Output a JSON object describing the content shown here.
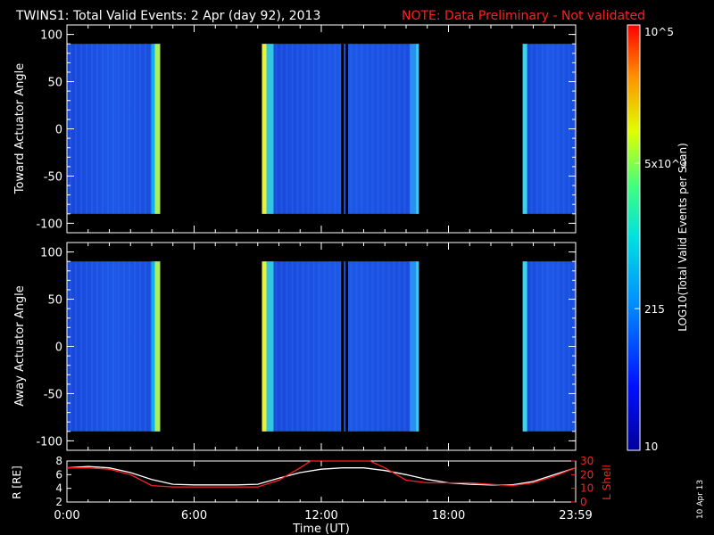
{
  "header": {
    "title": "TWINS1: Total Valid Events:  2 Apr (day  92), 2013",
    "note": "NOTE: Data Preliminary - Not validated"
  },
  "colors": {
    "background": "#000000",
    "foreground": "#ffffff",
    "note": "#ff2020",
    "r_line": "#ffffff",
    "lshell_line": "#ff2020"
  },
  "chart_data": [
    {
      "type": "heatmap",
      "title": "",
      "ylabel": "Toward Actuator Angle",
      "ylim": [
        -110,
        110
      ],
      "yticks": [
        "100",
        "50",
        "0",
        "-50",
        "-100"
      ],
      "ytick_values": [
        100,
        50,
        0,
        -50,
        -100
      ],
      "xlim_hours": [
        0,
        24
      ],
      "data_angle_range": [
        -90,
        90
      ],
      "segments_hours": [
        [
          0.0,
          4.4
        ],
        [
          9.2,
          16.6
        ],
        [
          21.5,
          24.0
        ]
      ],
      "data_gaps_hours": [
        13.0,
        13.2
      ],
      "colorbar": {
        "scale": "log",
        "label": "LOG10(Total Valid Events per Scan)",
        "ticks": [
          "10",
          "215",
          "5x10^3",
          "10^5"
        ],
        "tick_values": [
          10,
          215,
          5000,
          100000
        ]
      }
    },
    {
      "type": "heatmap",
      "title": "",
      "ylabel": "Away Actuator Angle",
      "ylim": [
        -110,
        110
      ],
      "yticks": [
        "100",
        "50",
        "0",
        "-50",
        "-100"
      ],
      "ytick_values": [
        100,
        50,
        0,
        -50,
        -100
      ],
      "xlim_hours": [
        0,
        24
      ],
      "data_angle_range": [
        -90,
        90
      ],
      "segments_hours": [
        [
          0.0,
          4.4
        ],
        [
          9.2,
          16.6
        ],
        [
          21.5,
          24.0
        ]
      ],
      "data_gaps_hours": [
        13.0,
        13.2
      ]
    },
    {
      "type": "line",
      "ylabel_left": "R [RE]",
      "ylabel_right": "L Shell",
      "ylim_left": [
        2,
        8
      ],
      "ylim_right": [
        0,
        30
      ],
      "yticks_left": [
        "8",
        "6",
        "4",
        "2"
      ],
      "yticks_right": [
        "30",
        "20",
        "10",
        "0"
      ],
      "xlabel": "Time (UT)",
      "xticks": [
        "0:00",
        "6:00",
        "12:00",
        "18:00",
        "23:59"
      ],
      "xtick_hours": [
        0,
        6,
        12,
        18,
        24
      ],
      "series": [
        {
          "name": "R [RE]",
          "axis": "left",
          "x": [
            0,
            1,
            2,
            3,
            4,
            5,
            6,
            7,
            8,
            9,
            10,
            11,
            12,
            13,
            14,
            15,
            16,
            17,
            18,
            19,
            20,
            21,
            22,
            23,
            24
          ],
          "y": [
            7.0,
            7.2,
            7.0,
            6.3,
            5.3,
            4.6,
            4.5,
            4.5,
            4.5,
            4.6,
            5.5,
            6.3,
            6.8,
            7.0,
            7.0,
            6.6,
            6.0,
            5.3,
            4.8,
            4.6,
            4.5,
            4.5,
            5.0,
            6.0,
            7.0
          ]
        },
        {
          "name": "L Shell",
          "axis": "right",
          "x": [
            0,
            1,
            2,
            3,
            4,
            5,
            6,
            7,
            8,
            9,
            10,
            11,
            11.5,
            12,
            14.3,
            15,
            16,
            17,
            18,
            19,
            20,
            21,
            22,
            23,
            24
          ],
          "y": [
            25,
            25,
            24,
            20,
            12,
            11,
            11,
            11,
            11,
            11,
            16,
            25,
            32,
            32,
            32,
            25,
            16,
            14,
            14,
            14,
            13,
            12,
            14,
            19,
            25
          ]
        }
      ]
    }
  ],
  "footer": {
    "date_stamp": "10 Apr 13"
  }
}
